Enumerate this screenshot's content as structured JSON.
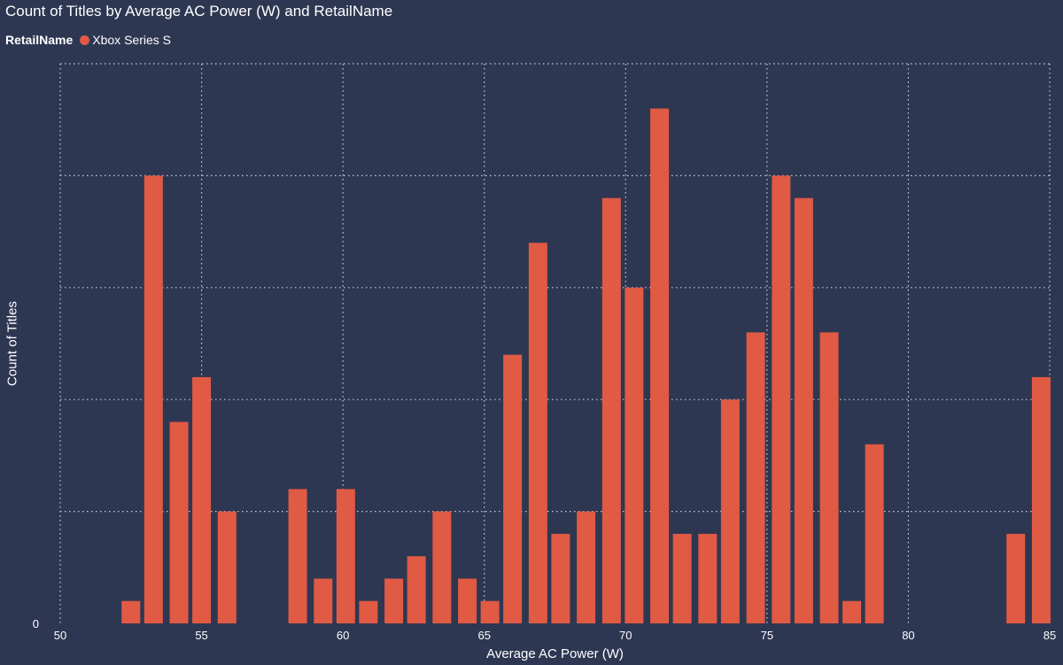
{
  "chart_data": {
    "type": "bar",
    "title": "Count of Titles by Average AC Power (W) and RetailName",
    "legend": {
      "title": "RetailName",
      "placement": "top-left",
      "entries": [
        {
          "name": "Xbox Series S",
          "color": "#e05a44"
        }
      ]
    },
    "xlabel": "Average AC Power (W)",
    "ylabel": "Count of Titles",
    "xlim": [
      50,
      85
    ],
    "ylim": [
      0,
      25
    ],
    "x_ticks": [
      "50",
      "55",
      "60",
      "65",
      "70",
      "75",
      "80",
      "85"
    ],
    "y_ticks": [
      "0"
    ],
    "grid": true,
    "series": [
      {
        "name": "Xbox Series S",
        "x": [
          52.5,
          53.3,
          54.2,
          55.0,
          55.9,
          58.4,
          59.3,
          60.1,
          60.9,
          61.8,
          62.6,
          63.5,
          64.4,
          65.2,
          66.0,
          66.9,
          67.7,
          68.6,
          69.5,
          70.3,
          71.2,
          72.0,
          72.9,
          73.7,
          74.6,
          75.5,
          76.3,
          77.2,
          78.0,
          78.8,
          83.8,
          84.7
        ],
        "values": [
          1,
          20,
          9,
          11,
          5,
          6,
          2,
          6,
          1,
          2,
          3,
          5,
          2,
          1,
          12,
          17,
          4,
          5,
          19,
          15,
          23,
          4,
          4,
          10,
          13,
          20,
          19,
          13,
          1,
          8,
          4,
          11
        ]
      }
    ]
  }
}
